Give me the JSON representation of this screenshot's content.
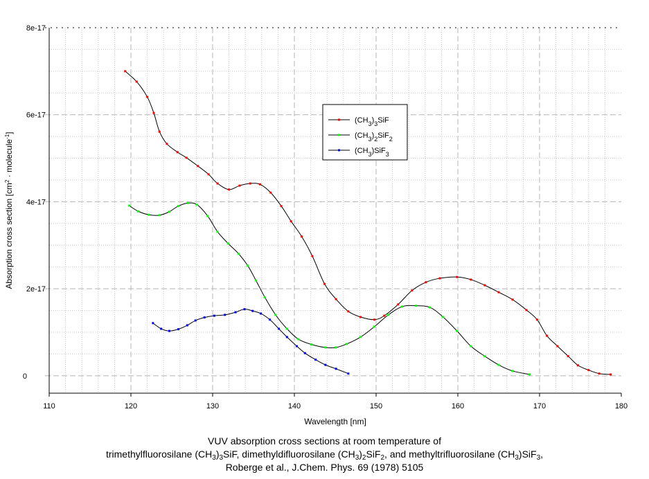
{
  "chart_data": {
    "type": "line",
    "xlabel": "Wavelength [nm]",
    "ylabel": [
      {
        "t": "Absorption cross section [cm"
      },
      {
        "t": "2",
        "sup": true
      },
      {
        "t": " · molecule"
      },
      {
        "t": "-1",
        "sup": true
      },
      {
        "t": "]"
      }
    ],
    "xlim": [
      110,
      180
    ],
    "ylim": [
      -4e-18,
      8e-17
    ],
    "xticks": [
      110,
      120,
      130,
      140,
      150,
      160,
      170,
      180
    ],
    "xtick_labels": [
      "110",
      "120",
      "130",
      "140",
      "150",
      "160",
      "170",
      "180"
    ],
    "yticks": [
      0,
      2e-17,
      4e-17,
      6e-17,
      8e-17
    ],
    "ytick_labels": [
      "0",
      "2e-17",
      "4e-17",
      "6e-17",
      "8e-17"
    ],
    "grid": true,
    "legend_placement": "upper-center",
    "series": [
      {
        "name": [
          {
            "t": "(CH"
          },
          {
            "t": "3",
            "sub": true
          },
          {
            "t": ")"
          },
          {
            "t": "3",
            "sub": true
          },
          {
            "t": "SiF"
          }
        ],
        "color": "#ff0000",
        "x": [
          119.3,
          120.7,
          122.0,
          122.8,
          123.5,
          124.4,
          125.7,
          126.8,
          128.2,
          129.5,
          130.6,
          132.0,
          133.3,
          134.6,
          135.8,
          137.1,
          138.4,
          139.6,
          140.9,
          142.2,
          143.7,
          145.1,
          146.6,
          148.1,
          149.8,
          151.0,
          152.7,
          154.4,
          156.1,
          157.8,
          159.9,
          161.6,
          163.3,
          165.0,
          166.7,
          168.4,
          169.7,
          170.9,
          172.2,
          173.5,
          174.7,
          176.0,
          177.3,
          178.7
        ],
        "y": [
          7e-17,
          6.76e-17,
          6.41e-17,
          6.04e-17,
          5.61e-17,
          5.33e-17,
          5.14e-17,
          5.01e-17,
          4.82e-17,
          4.63e-17,
          4.42e-17,
          4.28e-17,
          4.37e-17,
          4.42e-17,
          4.4e-17,
          4.21e-17,
          3.9e-17,
          3.55e-17,
          3.2e-17,
          2.75e-17,
          2.11e-17,
          1.76e-17,
          1.48e-17,
          1.35e-17,
          1.29e-17,
          1.38e-17,
          1.64e-17,
          1.96e-17,
          2.15e-17,
          2.24e-17,
          2.27e-17,
          2.21e-17,
          2.08e-17,
          1.92e-17,
          1.75e-17,
          1.51e-17,
          1.29e-17,
          9.2e-18,
          6.8e-18,
          4.5e-18,
          2.4e-18,
          1.3e-18,
          5e-19,
          3e-19
        ]
      },
      {
        "name": [
          {
            "t": "(CH"
          },
          {
            "t": "3",
            "sub": true
          },
          {
            "t": ")"
          },
          {
            "t": "2",
            "sub": true
          },
          {
            "t": "SiF"
          },
          {
            "t": "2",
            "sub": true
          }
        ],
        "color": "#00ff00",
        "x": [
          119.8,
          120.9,
          122.2,
          123.5,
          124.7,
          125.8,
          127.0,
          128.1,
          129.4,
          130.6,
          131.9,
          133.2,
          134.3,
          135.3,
          136.4,
          137.7,
          139.1,
          140.5,
          142.1,
          143.8,
          145.1,
          146.4,
          148.1,
          149.8,
          151.5,
          153.2,
          154.9,
          156.6,
          158.2,
          159.9,
          161.6,
          163.3,
          165.0,
          166.7,
          168.8
        ],
        "y": [
          3.91e-17,
          3.78e-17,
          3.7e-17,
          3.69e-17,
          3.77e-17,
          3.9e-17,
          3.97e-17,
          3.93e-17,
          3.67e-17,
          3.31e-17,
          3.04e-17,
          2.8e-17,
          2.53e-17,
          2.19e-17,
          1.8e-17,
          1.4e-17,
          1.08e-17,
          8.4e-18,
          7.2e-18,
          6.5e-18,
          6.5e-18,
          7.3e-18,
          8.9e-18,
          1.13e-17,
          1.4e-17,
          1.59e-17,
          1.61e-17,
          1.57e-17,
          1.35e-17,
          1.03e-17,
          6.8e-18,
          4.5e-18,
          2.5e-18,
          1.1e-18,
          3e-19
        ]
      },
      {
        "name": [
          {
            "t": "(CH"
          },
          {
            "t": "3",
            "sub": true
          },
          {
            "t": ")SiF"
          },
          {
            "t": "3",
            "sub": true
          }
        ],
        "color": "#0000ff",
        "x": [
          122.7,
          123.7,
          124.7,
          125.8,
          126.9,
          127.9,
          129.0,
          130.2,
          131.5,
          132.8,
          133.9,
          134.9,
          135.9,
          137.0,
          138.1,
          139.1,
          140.3,
          141.3,
          142.6,
          143.8,
          145.1,
          146.6
        ],
        "y": [
          1.21e-17,
          1.08e-17,
          1.03e-17,
          1.07e-17,
          1.16e-17,
          1.27e-17,
          1.34e-17,
          1.38e-17,
          1.4e-17,
          1.46e-17,
          1.53e-17,
          1.49e-17,
          1.43e-17,
          1.29e-17,
          1.08e-17,
          8.9e-18,
          6.8e-18,
          5.2e-18,
          3.7e-18,
          2.5e-18,
          1.6e-18,
          5e-19
        ]
      }
    ]
  },
  "caption": [
    [
      {
        "t": "VUV absorption cross sections at room temperature of"
      }
    ],
    [
      {
        "t": "trimethylfluorosilane (CH"
      },
      {
        "t": "3",
        "sub": true
      },
      {
        "t": ")"
      },
      {
        "t": "3",
        "sub": true
      },
      {
        "t": "SiF, dimethyldifluorosilane (CH"
      },
      {
        "t": "3",
        "sub": true
      },
      {
        "t": ")"
      },
      {
        "t": "2",
        "sub": true
      },
      {
        "t": "SiF"
      },
      {
        "t": "2",
        "sub": true
      },
      {
        "t": ", and methyltrifluorosilane (CH"
      },
      {
        "t": "3",
        "sub": true
      },
      {
        "t": ")SiF"
      },
      {
        "t": "3",
        "sub": true
      },
      {
        "t": ","
      }
    ],
    [
      {
        "t": "Roberge et al., J.Chem. Phys. 69 (1978) 5105"
      }
    ]
  ]
}
